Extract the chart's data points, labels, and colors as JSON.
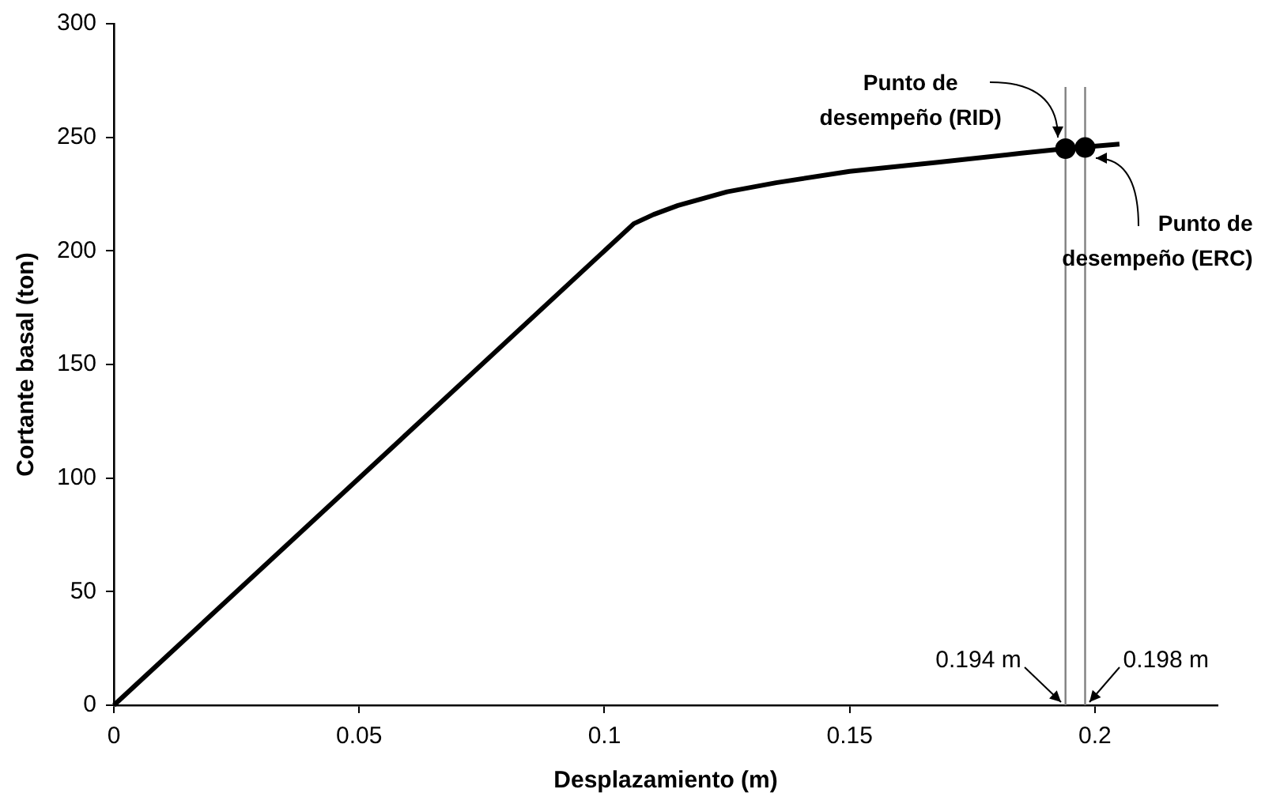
{
  "chart_data": {
    "type": "line",
    "xlabel": "Desplazamiento (m)",
    "ylabel": "Cortante basal (ton)",
    "series": [
      {
        "type": "line",
        "color": "#000000",
        "x": [
          0,
          0.106,
          0.11,
          0.115,
          0.125,
          0.135,
          0.15,
          0.168,
          0.185,
          0.194,
          0.205
        ],
        "values": [
          0,
          212,
          216,
          220,
          226,
          230,
          235,
          239,
          243,
          245,
          247
        ]
      },
      {
        "type": "scatter",
        "color": "#000000",
        "marker": "circle",
        "x": [
          0.194,
          0.198
        ],
        "values": [
          245,
          245.5
        ]
      }
    ],
    "xlim": [
      0,
      0.225
    ],
    "xticks": [
      0,
      0.05,
      0.1,
      0.15,
      0.2
    ],
    "ylim": [
      0,
      300
    ],
    "yticks": [
      0,
      50,
      100,
      150,
      200,
      250,
      300
    ],
    "grid": false,
    "legend": false,
    "ref_lines": [
      {
        "axis": "x",
        "value": 0.194,
        "color": "#808080",
        "label": "0.194 m"
      },
      {
        "axis": "x",
        "value": 0.198,
        "color": "#808080",
        "label": "0.198 m"
      }
    ],
    "annotations": [
      {
        "text": "Punto de\ndesempeño (RID)",
        "x": 0.194,
        "y": 245
      },
      {
        "text": "Punto de\ndesempeño (ERC)",
        "x": 0.198,
        "y": 245.5
      }
    ]
  }
}
